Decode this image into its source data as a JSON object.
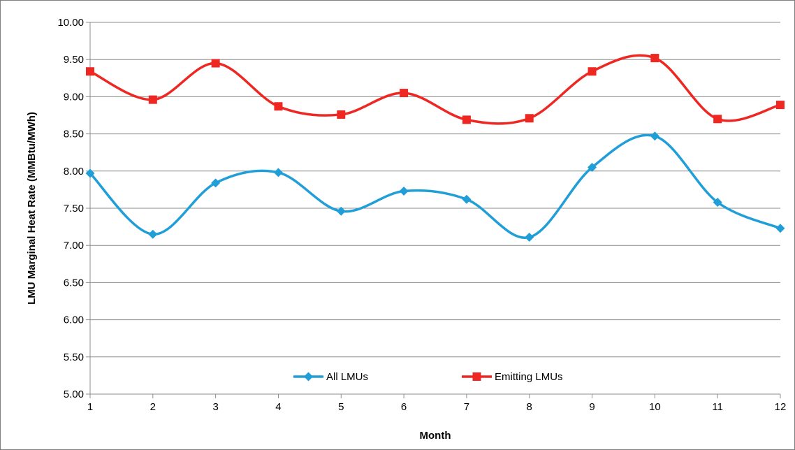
{
  "chart_data": {
    "type": "line",
    "title": "",
    "xlabel": "Month",
    "ylabel": "LMU Marginal Heat Rate (MMBtu/MWh)",
    "ylim": [
      5.0,
      10.0
    ],
    "ystep": 0.5,
    "y_ticks": [
      "5.00",
      "5.50",
      "6.00",
      "6.50",
      "7.00",
      "7.50",
      "8.00",
      "8.50",
      "9.00",
      "9.50",
      "10.00"
    ],
    "x": [
      1,
      2,
      3,
      4,
      5,
      6,
      7,
      8,
      9,
      10,
      11,
      12
    ],
    "x_ticks": [
      "1",
      "2",
      "3",
      "4",
      "5",
      "6",
      "7",
      "8",
      "9",
      "10",
      "11",
      "12"
    ],
    "grid": true,
    "smooth": true,
    "legend_position": "bottom-inside",
    "series": [
      {
        "name": "All LMUs",
        "color": "#1f9ed8",
        "marker": "diamond",
        "values": [
          7.97,
          7.15,
          7.84,
          7.98,
          7.46,
          7.73,
          7.62,
          7.11,
          8.05,
          8.47,
          7.58,
          7.23
        ]
      },
      {
        "name": "Emitting LMUs",
        "color": "#ee2722",
        "marker": "square",
        "values": [
          9.34,
          8.96,
          9.45,
          8.87,
          8.76,
          9.05,
          8.69,
          8.71,
          9.34,
          9.52,
          8.7,
          8.89
        ]
      }
    ]
  }
}
